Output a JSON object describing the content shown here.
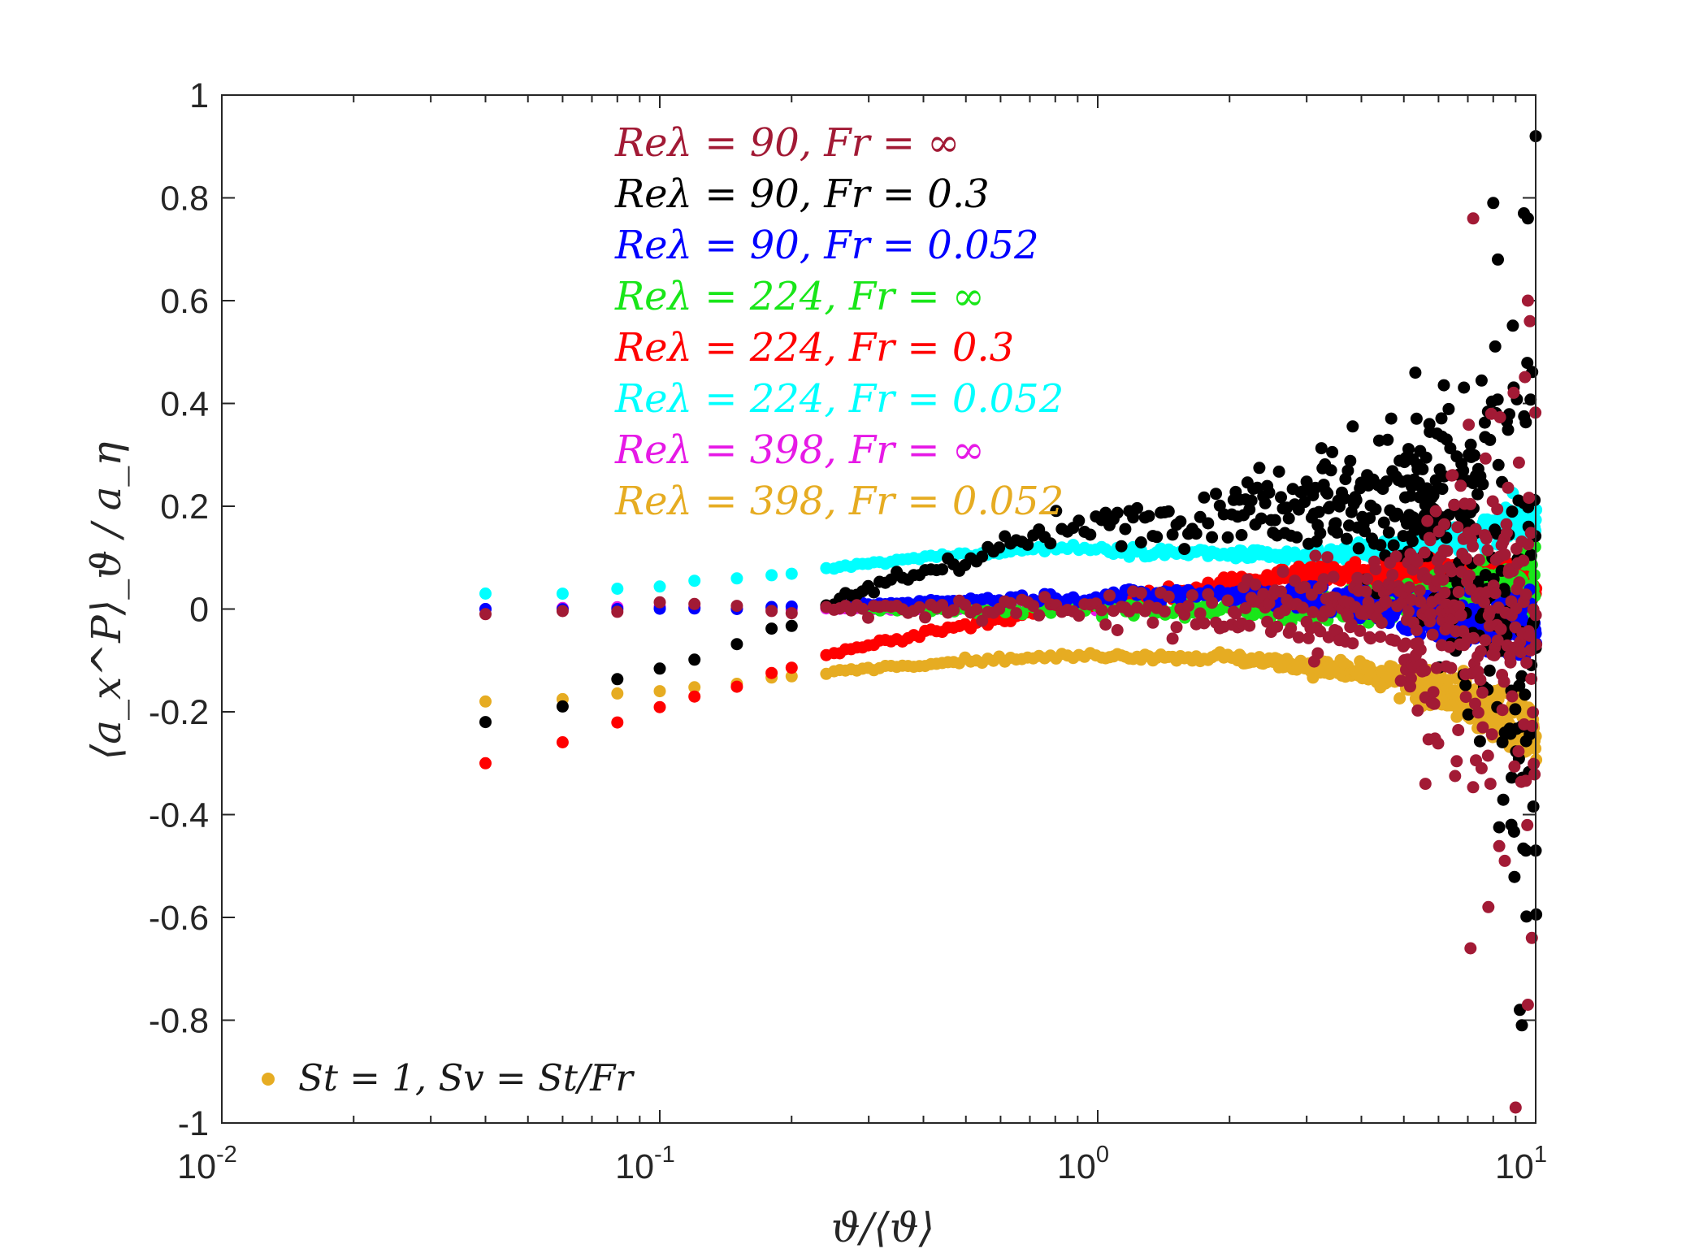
{
  "chart_data": {
    "type": "scatter",
    "x_scale": "log",
    "xlim": [
      0.01,
      10
    ],
    "ylim": [
      -1,
      1
    ],
    "xlabel": "ϑ/⟨ϑ⟩",
    "ylabel": "⟨a_x^P⟩_ϑ / a_η",
    "x_ticks": [
      {
        "base": "10",
        "exp": "-2",
        "value": 0.01
      },
      {
        "base": "10",
        "exp": "-1",
        "value": 0.1
      },
      {
        "base": "10",
        "exp": "0",
        "value": 1
      },
      {
        "base": "10",
        "exp": "1",
        "value": 10
      }
    ],
    "y_ticks": [
      "-1",
      "-0.8",
      "-0.6",
      "-0.4",
      "-0.2",
      "0",
      "0.2",
      "0.4",
      "0.6",
      "0.8",
      "1"
    ],
    "grid": false,
    "legend_position": "top-center",
    "annotation": {
      "text": "St = 1, Sv = St/Fr",
      "marker_color": "#e6ac22"
    },
    "series": [
      {
        "name": "Reλ = 90, Fr = ∞",
        "color": "#a21a35",
        "profile": [
          [
            0.04,
            -0.01
          ],
          [
            0.06,
            -0.005
          ],
          [
            0.08,
            -0.005
          ],
          [
            0.1,
            0.01
          ],
          [
            0.15,
            0.005
          ],
          [
            0.3,
            0.0
          ],
          [
            0.6,
            0.0
          ],
          [
            1,
            0.0
          ],
          [
            2,
            0.0
          ],
          [
            3,
            0.0
          ],
          [
            5,
            0.0
          ],
          [
            7,
            0.0
          ],
          [
            10,
            0.0
          ]
        ],
        "noise": [
          [
            0.04,
            0
          ],
          [
            0.2,
            0.01
          ],
          [
            1,
            0.03
          ],
          [
            2,
            0.05
          ],
          [
            4,
            0.08
          ],
          [
            6,
            0.2
          ],
          [
            8,
            0.3
          ],
          [
            10,
            0.45
          ]
        ],
        "extra_points": [
          [
            7.2,
            0.76
          ],
          [
            9.6,
            0.6
          ],
          [
            9.7,
            0.56
          ],
          [
            9.8,
            -0.64
          ],
          [
            7.8,
            -0.58
          ],
          [
            7.1,
            -0.66
          ],
          [
            9.6,
            -0.77
          ],
          [
            9.0,
            -0.97
          ],
          [
            8.5,
            -0.49
          ],
          [
            5.6,
            -0.34
          ]
        ]
      },
      {
        "name": "Reλ = 90, Fr = 0.3",
        "color": "#000000",
        "profile": [
          [
            0.04,
            -0.22
          ],
          [
            0.06,
            -0.19
          ],
          [
            0.08,
            -0.135
          ],
          [
            0.1,
            -0.115
          ],
          [
            0.13,
            -0.09
          ],
          [
            0.16,
            -0.06
          ],
          [
            0.2,
            -0.03
          ],
          [
            0.3,
            0.04
          ],
          [
            0.5,
            0.1
          ],
          [
            0.8,
            0.15
          ],
          [
            1.2,
            0.17
          ],
          [
            2,
            0.2
          ],
          [
            3,
            0.22
          ],
          [
            5,
            0.2
          ],
          [
            7,
            0.12
          ],
          [
            10,
            0.0
          ]
        ],
        "noise": [
          [
            0.04,
            0
          ],
          [
            0.2,
            0.005
          ],
          [
            0.5,
            0.02
          ],
          [
            1,
            0.03
          ],
          [
            2,
            0.05
          ],
          [
            4,
            0.1
          ],
          [
            6,
            0.22
          ],
          [
            8,
            0.35
          ],
          [
            10,
            0.5
          ]
        ],
        "extra_points": [
          [
            10,
            0.92
          ],
          [
            8.0,
            0.79
          ],
          [
            9.4,
            0.77
          ],
          [
            9.6,
            0.76
          ],
          [
            8.2,
            0.68
          ],
          [
            9.2,
            -0.78
          ],
          [
            9.3,
            -0.81
          ],
          [
            9.5,
            -0.47
          ],
          [
            10,
            -0.47
          ],
          [
            8.8,
            -0.42
          ]
        ]
      },
      {
        "name": "Reλ = 90, Fr = 0.052",
        "color": "#0000ff",
        "profile": [
          [
            0.04,
            0.0
          ],
          [
            0.06,
            0.0
          ],
          [
            0.08,
            0.0
          ],
          [
            0.1,
            0.0
          ],
          [
            0.15,
            0.0
          ],
          [
            0.3,
            0.01
          ],
          [
            0.6,
            0.02
          ],
          [
            1,
            0.025
          ],
          [
            2,
            0.03
          ],
          [
            3,
            0.02
          ],
          [
            5,
            0.0
          ],
          [
            7,
            -0.02
          ],
          [
            10,
            -0.03
          ]
        ],
        "noise": [
          [
            0.04,
            0
          ],
          [
            0.5,
            0.004
          ],
          [
            1,
            0.01
          ],
          [
            3,
            0.02
          ],
          [
            6,
            0.04
          ],
          [
            10,
            0.06
          ]
        ],
        "extra_points": []
      },
      {
        "name": "Reλ = 224, Fr = ∞",
        "color": "#19e619",
        "profile": [
          [
            0.3,
            0.0
          ],
          [
            0.6,
            0.0
          ],
          [
            1,
            0.0
          ],
          [
            2,
            0.0
          ],
          [
            4,
            0.0
          ],
          [
            6,
            0.02
          ],
          [
            8,
            0.04
          ],
          [
            10,
            0.05
          ]
        ],
        "noise": [
          [
            0.3,
            0.004
          ],
          [
            1,
            0.01
          ],
          [
            3,
            0.02
          ],
          [
            6,
            0.03
          ],
          [
            10,
            0.05
          ]
        ],
        "extra_points": []
      },
      {
        "name": "Reλ = 224, Fr = 0.3",
        "color": "#ff0000",
        "profile": [
          [
            0.04,
            -0.3
          ],
          [
            0.06,
            -0.26
          ],
          [
            0.08,
            -0.22
          ],
          [
            0.1,
            -0.19
          ],
          [
            0.12,
            -0.17
          ],
          [
            0.15,
            -0.15
          ],
          [
            0.2,
            -0.11
          ],
          [
            0.3,
            -0.07
          ],
          [
            0.5,
            -0.03
          ],
          [
            1,
            0.01
          ],
          [
            2,
            0.05
          ],
          [
            3,
            0.07
          ],
          [
            5,
            0.07
          ],
          [
            7,
            0.06
          ],
          [
            10,
            0.05
          ]
        ],
        "noise": [
          [
            0.04,
            0
          ],
          [
            1,
            0.008
          ],
          [
            3,
            0.015
          ],
          [
            6,
            0.025
          ],
          [
            10,
            0.04
          ]
        ],
        "extra_points": []
      },
      {
        "name": "Reλ = 224, Fr = 0.052",
        "color": "#00ffff",
        "profile": [
          [
            0.04,
            0.03
          ],
          [
            0.06,
            0.03
          ],
          [
            0.08,
            0.04
          ],
          [
            0.1,
            0.045
          ],
          [
            0.2,
            0.07
          ],
          [
            0.4,
            0.1
          ],
          [
            0.8,
            0.12
          ],
          [
            1.5,
            0.11
          ],
          [
            3,
            0.1
          ],
          [
            6,
            0.13
          ],
          [
            10,
            0.18
          ]
        ],
        "noise": [
          [
            0.04,
            0
          ],
          [
            1,
            0.006
          ],
          [
            3,
            0.01
          ],
          [
            6,
            0.02
          ],
          [
            10,
            0.03
          ]
        ],
        "extra_points": []
      },
      {
        "name": "Reλ = 398, Fr = ∞",
        "color": "#e619e6",
        "profile": [
          [
            0.04,
            0.0
          ],
          [
            0.1,
            0.005
          ],
          [
            0.2,
            0.0
          ],
          [
            0.5,
            0.0
          ],
          [
            1,
            0.0
          ]
        ],
        "noise": [
          [
            0.04,
            0
          ],
          [
            1,
            0.004
          ]
        ],
        "extra_points": []
      },
      {
        "name": "Reλ = 398, Fr = 0.052",
        "color": "#e6ac22",
        "profile": [
          [
            0.04,
            -0.18
          ],
          [
            0.06,
            -0.175
          ],
          [
            0.08,
            -0.165
          ],
          [
            0.1,
            -0.16
          ],
          [
            0.15,
            -0.145
          ],
          [
            0.2,
            -0.13
          ],
          [
            0.3,
            -0.115
          ],
          [
            0.5,
            -0.1
          ],
          [
            1,
            -0.09
          ],
          [
            2,
            -0.095
          ],
          [
            3,
            -0.11
          ],
          [
            5,
            -0.14
          ],
          [
            7,
            -0.18
          ],
          [
            10,
            -0.25
          ]
        ],
        "noise": [
          [
            0.04,
            0
          ],
          [
            1,
            0.005
          ],
          [
            3,
            0.012
          ],
          [
            6,
            0.03
          ],
          [
            10,
            0.05
          ]
        ],
        "extra_points": []
      }
    ]
  }
}
